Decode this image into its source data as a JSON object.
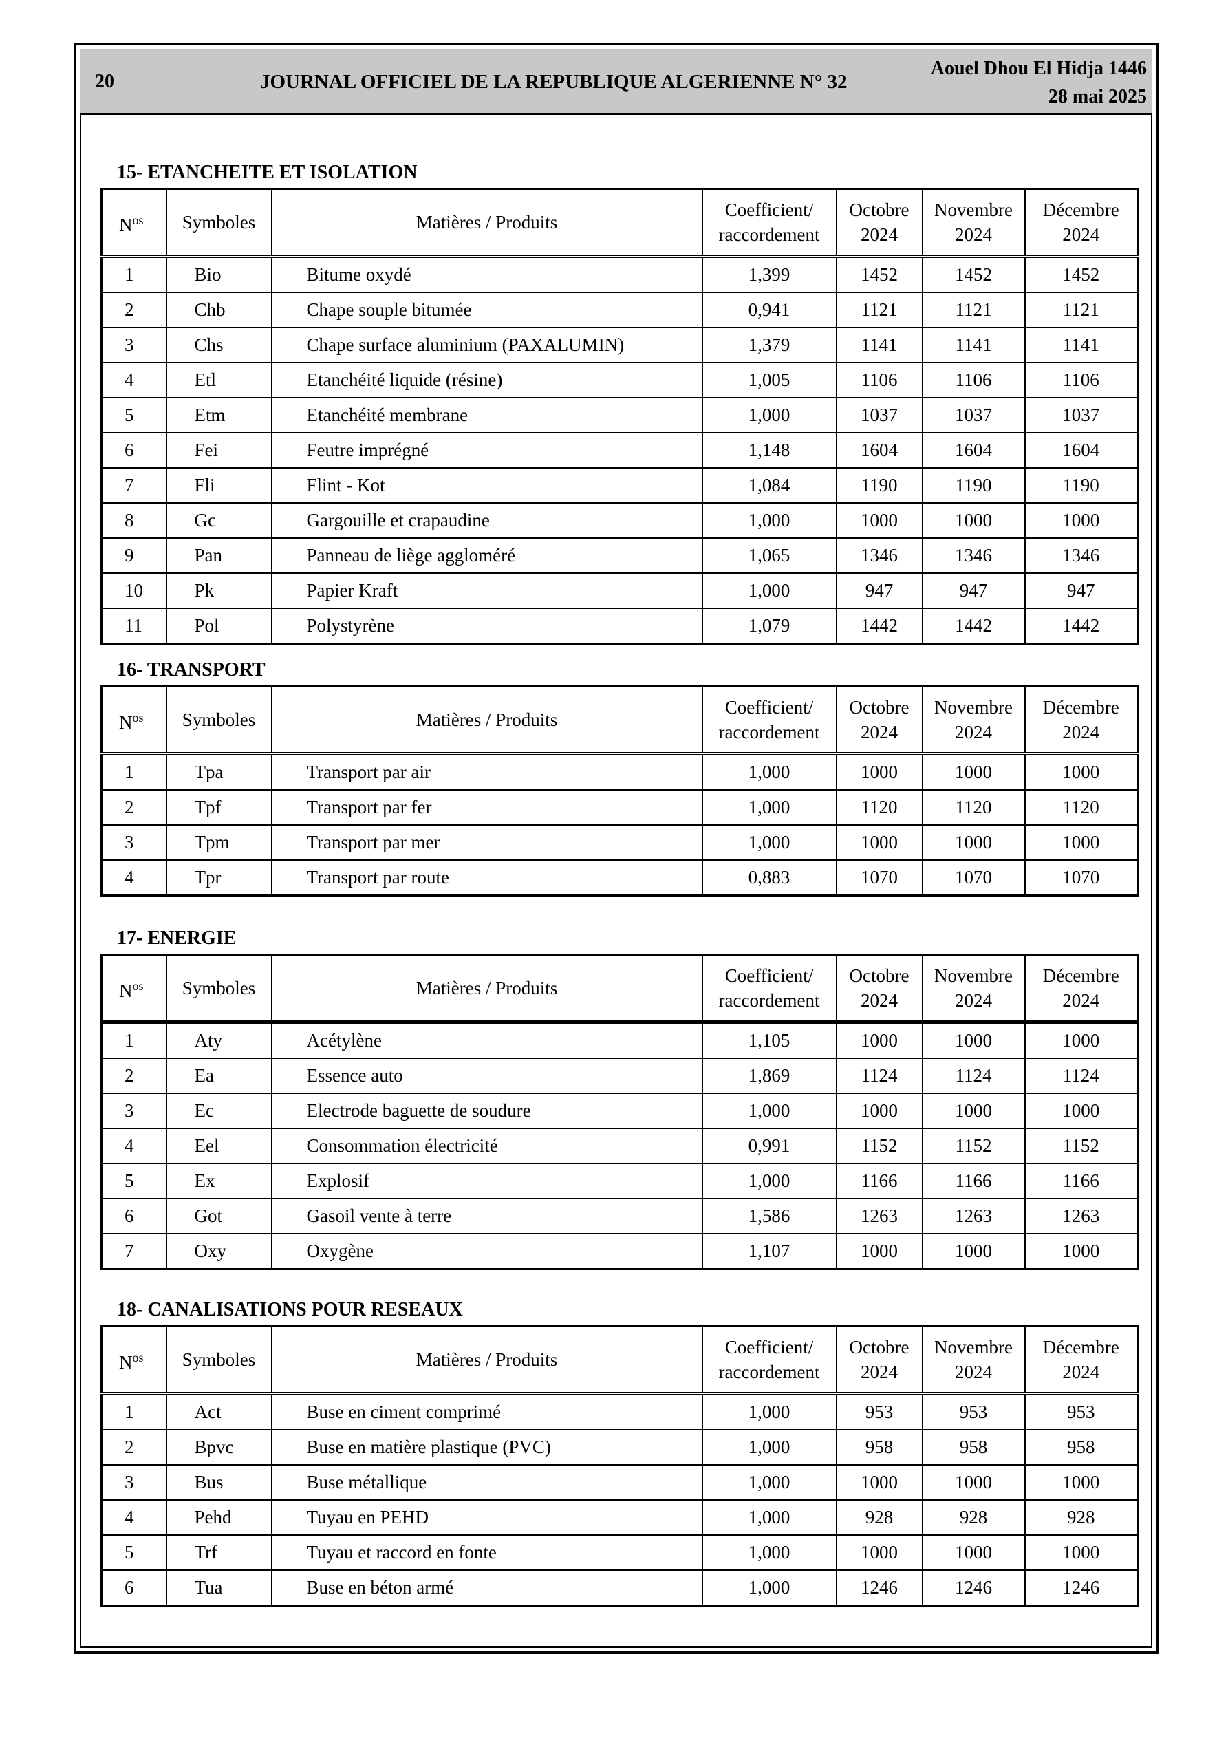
{
  "header": {
    "page": "20",
    "title": "JOURNAL OFFICIEL DE LA REPUBLIQUE ALGERIENNE N° 32",
    "date_lines": [
      "Aouel Dhou El Hidja 1446",
      "28 mai 2025"
    ]
  },
  "sections": [
    {
      "title": "15- ETANCHEITE ET ISOLATION",
      "columns": [
        [
          "N",
          "os"
        ],
        [
          "Symboles"
        ],
        [
          "Matières / Produits"
        ],
        [
          "Coefficient/",
          "raccordement"
        ],
        [
          "Octobre",
          "2024"
        ],
        [
          "Novembre",
          "2024"
        ],
        [
          "Décembre",
          "2024"
        ]
      ],
      "rows": [
        [
          "1",
          "Bio",
          "Bitume oxydé",
          "1,399",
          "1452",
          "1452",
          "1452"
        ],
        [
          "2",
          "Chb",
          "Chape souple bitumée",
          "0,941",
          "1121",
          "1121",
          "1121"
        ],
        [
          "3",
          "Chs",
          "Chape surface aluminium (PAXALUMIN)",
          "1,379",
          "1141",
          "1141",
          "1141"
        ],
        [
          "4",
          "Etl",
          "Etanchéité liquide (résine)",
          "1,005",
          "1106",
          "1106",
          "1106"
        ],
        [
          "5",
          "Etm",
          "Etanchéité membrane",
          "1,000",
          "1037",
          "1037",
          "1037"
        ],
        [
          "6",
          "Fei",
          "Feutre imprégné",
          "1,148",
          "1604",
          "1604",
          "1604"
        ],
        [
          "7",
          "Fli",
          "Flint - Kot",
          "1,084",
          "1190",
          "1190",
          "1190"
        ],
        [
          "8",
          "Gc",
          "Gargouille et crapaudine",
          "1,000",
          "1000",
          "1000",
          "1000"
        ],
        [
          "9",
          "Pan",
          "Panneau de liège aggloméré",
          "1,065",
          "1346",
          "1346",
          "1346"
        ],
        [
          "10",
          "Pk",
          "Papier Kraft",
          "1,000",
          "947",
          "947",
          "947"
        ],
        [
          "11",
          "Pol",
          "Polystyrène",
          "1,079",
          "1442",
          "1442",
          "1442"
        ]
      ]
    },
    {
      "title": "16- TRANSPORT",
      "columns": [
        [
          "N",
          "os"
        ],
        [
          "Symboles"
        ],
        [
          "Matières / Produits"
        ],
        [
          "Coefficient/",
          "raccordement"
        ],
        [
          "Octobre",
          "2024"
        ],
        [
          "Novembre",
          "2024"
        ],
        [
          "Décembre",
          "2024"
        ]
      ],
      "rows": [
        [
          "1",
          "Tpa",
          "Transport par air",
          "1,000",
          "1000",
          "1000",
          "1000"
        ],
        [
          "2",
          "Tpf",
          "Transport par fer",
          "1,000",
          "1120",
          "1120",
          "1120"
        ],
        [
          "3",
          "Tpm",
          "Transport par mer",
          "1,000",
          "1000",
          "1000",
          "1000"
        ],
        [
          "4",
          "Tpr",
          "Transport par route",
          "0,883",
          "1070",
          "1070",
          "1070"
        ]
      ]
    },
    {
      "title": "17- ENERGIE",
      "columns": [
        [
          "N",
          "os"
        ],
        [
          "Symboles"
        ],
        [
          "Matières / Produits"
        ],
        [
          "Coefficient/",
          "raccordement"
        ],
        [
          "Octobre",
          "2024"
        ],
        [
          "Novembre",
          "2024"
        ],
        [
          "Décembre",
          "2024"
        ]
      ],
      "rows": [
        [
          "1",
          "Aty",
          "Acétylène",
          "1,105",
          "1000",
          "1000",
          "1000"
        ],
        [
          "2",
          "Ea",
          "Essence auto",
          "1,869",
          "1124",
          "1124",
          "1124"
        ],
        [
          "3",
          "Ec",
          "Electrode baguette de soudure",
          "1,000",
          "1000",
          "1000",
          "1000"
        ],
        [
          "4",
          "Eel",
          "Consommation électricité",
          "0,991",
          "1152",
          "1152",
          "1152"
        ],
        [
          "5",
          "Ex",
          "Explosif",
          "1,000",
          "1166",
          "1166",
          "1166"
        ],
        [
          "6",
          "Got",
          "Gasoil vente à terre",
          "1,586",
          "1263",
          "1263",
          "1263"
        ],
        [
          "7",
          "Oxy",
          "Oxygène",
          "1,107",
          "1000",
          "1000",
          "1000"
        ]
      ]
    },
    {
      "title": "18-  CANALISATIONS POUR RESEAUX",
      "columns": [
        [
          "N",
          "os"
        ],
        [
          "Symboles"
        ],
        [
          "Matières / Produits"
        ],
        [
          "Coefficient/",
          "raccordement"
        ],
        [
          "Octobre",
          "2024"
        ],
        [
          "Novembre",
          "2024"
        ],
        [
          "Décembre",
          "2024"
        ]
      ],
      "rows": [
        [
          "1",
          "Act",
          "Buse en ciment comprimé",
          "1,000",
          "953",
          "953",
          "953"
        ],
        [
          "2",
          "Bpvc",
          "Buse en matière plastique (PVC)",
          "1,000",
          "958",
          "958",
          "958"
        ],
        [
          "3",
          "Bus",
          "Buse métallique",
          "1,000",
          "1000",
          "1000",
          "1000"
        ],
        [
          "4",
          "Pehd",
          "Tuyau en PEHD",
          "1,000",
          "928",
          "928",
          "928"
        ],
        [
          "5",
          "Trf",
          "Tuyau et raccord en fonte",
          "1,000",
          "1000",
          "1000",
          "1000"
        ],
        [
          "6",
          "Tua",
          "Buse en béton armé",
          "1,000",
          "1246",
          "1246",
          "1246"
        ]
      ]
    }
  ]
}
